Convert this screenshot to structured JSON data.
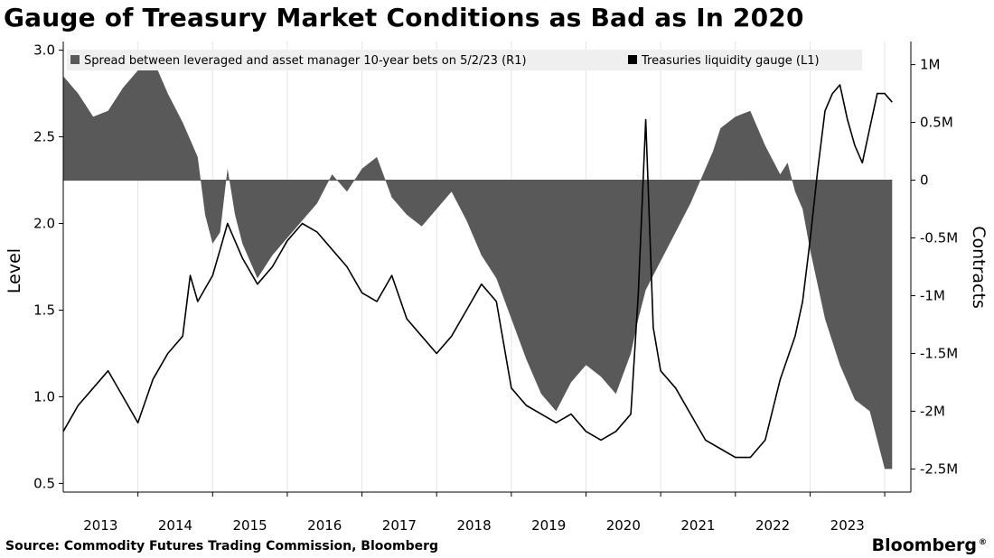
{
  "title": "Gauge of Treasury Market Conditions as Bad as In 2020",
  "source": "Source: Commodity Futures Trading Commission, Bloomberg",
  "brand": "Bloomberg",
  "colors": {
    "area": "#595959",
    "line": "#000000",
    "grid": "#e4e4e4",
    "legend_bg": "#efefef"
  },
  "chart_data": {
    "type": "area",
    "ylabel_left": "Level",
    "ylabel_right": "Contracts",
    "x_tick_labels": [
      "2013",
      "2014",
      "2015",
      "2016",
      "2017",
      "2018",
      "2019",
      "2020",
      "2021",
      "2022",
      "2023"
    ],
    "left_axis": {
      "ylim": [
        0.45,
        3.05
      ],
      "ticks": [
        0.5,
        1.0,
        1.5,
        2.0,
        2.5,
        3.0
      ],
      "tick_labels": [
        "0.5",
        "1.0",
        "1.5",
        "2.0",
        "2.5",
        "3.0"
      ]
    },
    "right_axis": {
      "ylim": [
        -2.7,
        1.2
      ],
      "ticks": [
        1.0,
        0.5,
        0,
        -0.5,
        -1.0,
        -1.5,
        -2.0,
        -2.5
      ],
      "tick_labels": [
        "1M",
        "0.5M",
        "0",
        "-0.5M",
        "-1M",
        "-1.5M",
        "-2M",
        "-2.5M"
      ]
    },
    "grid": "vertical",
    "legend_position": "top",
    "series": [
      {
        "name": "Spread between leveraged and asset manager 10-year bets on 5/2/23 (R1)",
        "kind": "area",
        "axis": "right",
        "x": [
          2012.0,
          2012.2,
          2012.4,
          2012.6,
          2012.8,
          2013.0,
          2013.2,
          2013.4,
          2013.6,
          2013.8,
          2013.9,
          2014.0,
          2014.1,
          2014.2,
          2014.3,
          2014.4,
          2014.5,
          2014.6,
          2014.8,
          2015.0,
          2015.2,
          2015.4,
          2015.6,
          2015.8,
          2016.0,
          2016.2,
          2016.4,
          2016.6,
          2016.8,
          2017.0,
          2017.2,
          2017.4,
          2017.6,
          2017.8,
          2018.0,
          2018.2,
          2018.4,
          2018.6,
          2018.8,
          2019.0,
          2019.2,
          2019.4,
          2019.6,
          2019.7,
          2019.8,
          2020.0,
          2020.2,
          2020.4,
          2020.6,
          2020.7,
          2020.8,
          2021.0,
          2021.2,
          2021.4,
          2021.6,
          2021.7,
          2021.8,
          2021.9,
          2022.0,
          2022.2,
          2022.4,
          2022.6,
          2022.8,
          2023.0,
          2023.1
        ],
        "values": [
          0.9,
          0.75,
          0.55,
          0.6,
          0.8,
          0.95,
          1.05,
          0.75,
          0.5,
          0.2,
          -0.3,
          -0.55,
          -0.45,
          0.1,
          -0.3,
          -0.55,
          -0.7,
          -0.85,
          -0.65,
          -0.5,
          -0.35,
          -0.2,
          0.05,
          -0.1,
          0.1,
          0.2,
          -0.15,
          -0.3,
          -0.4,
          -0.25,
          -0.1,
          -0.35,
          -0.65,
          -0.85,
          -1.2,
          -1.55,
          -1.85,
          -2.0,
          -1.75,
          -1.6,
          -1.7,
          -1.85,
          -1.5,
          -1.2,
          -0.95,
          -0.7,
          -0.45,
          -0.2,
          0.1,
          0.25,
          0.45,
          0.55,
          0.6,
          0.3,
          0.05,
          0.15,
          -0.1,
          -0.25,
          -0.6,
          -1.2,
          -1.6,
          -1.9,
          -2.0,
          -2.5,
          -2.5
        ]
      },
      {
        "name": "Treasuries liquidity gauge (L1)",
        "kind": "line",
        "axis": "left",
        "x": [
          2012.0,
          2012.2,
          2012.4,
          2012.6,
          2012.8,
          2013.0,
          2013.2,
          2013.4,
          2013.6,
          2013.7,
          2013.8,
          2014.0,
          2014.1,
          2014.2,
          2014.4,
          2014.6,
          2014.8,
          2015.0,
          2015.2,
          2015.4,
          2015.6,
          2015.8,
          2016.0,
          2016.2,
          2016.4,
          2016.6,
          2016.8,
          2017.0,
          2017.2,
          2017.4,
          2017.6,
          2017.8,
          2018.0,
          2018.2,
          2018.4,
          2018.6,
          2018.8,
          2019.0,
          2019.2,
          2019.4,
          2019.6,
          2019.7,
          2019.8,
          2019.9,
          2020.0,
          2020.2,
          2020.4,
          2020.6,
          2020.8,
          2021.0,
          2021.2,
          2021.4,
          2021.6,
          2021.8,
          2021.9,
          2022.0,
          2022.1,
          2022.2,
          2022.3,
          2022.4,
          2022.5,
          2022.6,
          2022.7,
          2022.8,
          2022.9,
          2023.0,
          2023.1
        ],
        "values": [
          0.8,
          0.95,
          1.05,
          1.15,
          1.0,
          0.85,
          1.1,
          1.25,
          1.35,
          1.7,
          1.55,
          1.7,
          1.85,
          2.0,
          1.8,
          1.65,
          1.75,
          1.9,
          2.0,
          1.95,
          1.85,
          1.75,
          1.6,
          1.55,
          1.7,
          1.45,
          1.35,
          1.25,
          1.35,
          1.5,
          1.65,
          1.55,
          1.05,
          0.95,
          0.9,
          0.85,
          0.9,
          0.8,
          0.75,
          0.8,
          0.9,
          1.6,
          2.6,
          1.4,
          1.15,
          1.05,
          0.9,
          0.75,
          0.7,
          0.65,
          0.65,
          0.75,
          1.1,
          1.35,
          1.55,
          1.9,
          2.3,
          2.65,
          2.75,
          2.8,
          2.6,
          2.45,
          2.35,
          2.55,
          2.75,
          2.75,
          2.7
        ]
      }
    ]
  }
}
